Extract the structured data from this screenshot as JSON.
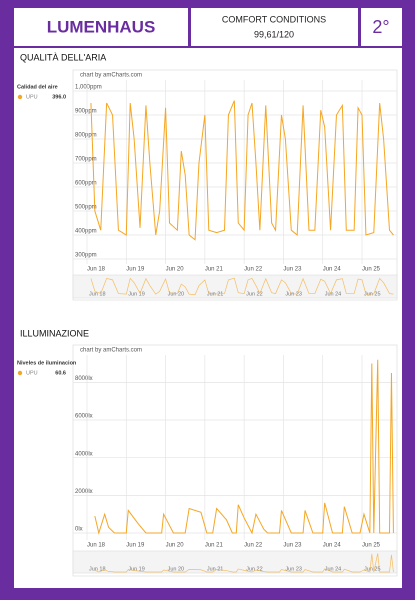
{
  "header": {
    "title": "LUMENHAUS",
    "subtitle": "COMFORT CONDITIONS",
    "score": "99,61/120",
    "rank": "2°"
  },
  "chart_data": [
    {
      "type": "line",
      "title": "QUALITÀ DELL'ARIA",
      "credit": "chart by amCharts.com",
      "legend_title": "Calidad del aire",
      "legend_value": "396.0",
      "xlim": [
        0,
        7.84
      ],
      "ylim": [
        300,
        1000
      ],
      "xticks": [
        {
          "value": 0,
          "label": "Jun 18"
        },
        {
          "value": 1,
          "label": "Jun 19"
        },
        {
          "value": 2,
          "label": "Jun 20"
        },
        {
          "value": 3,
          "label": "Jun 21"
        },
        {
          "value": 4,
          "label": "Jun 22"
        },
        {
          "value": 5,
          "label": "Jun 23"
        },
        {
          "value": 6,
          "label": "Jun 24"
        },
        {
          "value": 7,
          "label": "Jun 25"
        }
      ],
      "yticks": [
        {
          "value": 300,
          "label": "300ppm"
        },
        {
          "value": 400,
          "label": "400ppm"
        },
        {
          "value": 500,
          "label": "500ppm"
        },
        {
          "value": 600,
          "label": "600ppm"
        },
        {
          "value": 700,
          "label": "700ppm"
        },
        {
          "value": 800,
          "label": "800ppm"
        },
        {
          "value": 900,
          "label": "900ppm"
        },
        {
          "value": 1000,
          "label": "1,000ppm"
        }
      ],
      "grid": true,
      "series": [
        {
          "name": "UPU",
          "color": "#f5a623",
          "x": [
            0.1,
            0.2,
            0.35,
            0.5,
            0.65,
            0.8,
            1.0,
            1.1,
            1.2,
            1.35,
            1.5,
            1.6,
            1.75,
            1.85,
            2.0,
            2.1,
            2.3,
            2.4,
            2.5,
            2.6,
            2.75,
            2.85,
            3.0,
            3.1,
            3.3,
            3.5,
            3.6,
            3.75,
            3.85,
            4.0,
            4.1,
            4.2,
            4.3,
            4.4,
            4.55,
            4.7,
            4.8,
            4.95,
            5.05,
            5.2,
            5.35,
            5.5,
            5.65,
            5.8,
            5.95,
            6.05,
            6.2,
            6.35,
            6.5,
            6.6,
            6.8,
            6.9,
            7.0,
            7.1,
            7.3,
            7.45,
            7.55,
            7.7,
            7.8
          ],
          "values": [
            950,
            500,
            420,
            950,
            900,
            420,
            400,
            950,
            800,
            430,
            940,
            700,
            400,
            500,
            930,
            450,
            420,
            750,
            650,
            400,
            380,
            700,
            900,
            420,
            410,
            420,
            900,
            960,
            450,
            420,
            900,
            950,
            700,
            420,
            940,
            450,
            420,
            900,
            800,
            420,
            400,
            940,
            420,
            420,
            920,
            850,
            420,
            900,
            940,
            420,
            420,
            930,
            900,
            400,
            410,
            950,
            800,
            420,
            400
          ]
        }
      ]
    },
    {
      "type": "line",
      "title": "ILLUMINAZIONE",
      "credit": "chart by amCharts.com",
      "legend_title": "Niveles de iluminacion",
      "legend_value": "60.6",
      "xlim": [
        0,
        7.84
      ],
      "ylim": [
        0,
        9400
      ],
      "xticks": [
        {
          "value": 0,
          "label": "Jun 18"
        },
        {
          "value": 1,
          "label": "Jun 19"
        },
        {
          "value": 2,
          "label": "Jun 20"
        },
        {
          "value": 3,
          "label": "Jun 21"
        },
        {
          "value": 4,
          "label": "Jun 22"
        },
        {
          "value": 5,
          "label": "Jun 23"
        },
        {
          "value": 6,
          "label": "Jun 24"
        },
        {
          "value": 7,
          "label": "Jun 25"
        }
      ],
      "yticks": [
        {
          "value": 0,
          "label": "0lx"
        },
        {
          "value": 2000,
          "label": "2000lx"
        },
        {
          "value": 4000,
          "label": "4000lx"
        },
        {
          "value": 6000,
          "label": "6000lx"
        },
        {
          "value": 8000,
          "label": "8000lx"
        }
      ],
      "grid": true,
      "series": [
        {
          "name": "UPU",
          "color": "#f5a623",
          "x": [
            0.2,
            0.3,
            0.45,
            0.55,
            0.7,
            1.0,
            1.05,
            1.3,
            1.5,
            1.9,
            1.95,
            2.2,
            2.5,
            2.6,
            2.9,
            3.05,
            3.2,
            3.3,
            3.55,
            3.7,
            3.8,
            3.85,
            4.0,
            4.2,
            4.3,
            4.5,
            4.6,
            4.9,
            4.95,
            5.2,
            5.5,
            5.55,
            5.75,
            6.0,
            6.05,
            6.25,
            6.5,
            6.55,
            6.75,
            6.95,
            7.05,
            7.2,
            7.25,
            7.3,
            7.4,
            7.45,
            7.7,
            7.75,
            7.8
          ],
          "values": [
            900,
            0,
            1000,
            300,
            0,
            0,
            1200,
            500,
            0,
            0,
            1000,
            0,
            0,
            1300,
            1100,
            0,
            0,
            1300,
            700,
            0,
            0,
            1500,
            800,
            0,
            1000,
            200,
            0,
            0,
            1200,
            0,
            0,
            1200,
            0,
            0,
            1600,
            0,
            0,
            1400,
            0,
            0,
            1000,
            0,
            9000,
            0,
            9200,
            0,
            0,
            8500,
            0
          ]
        }
      ]
    }
  ]
}
